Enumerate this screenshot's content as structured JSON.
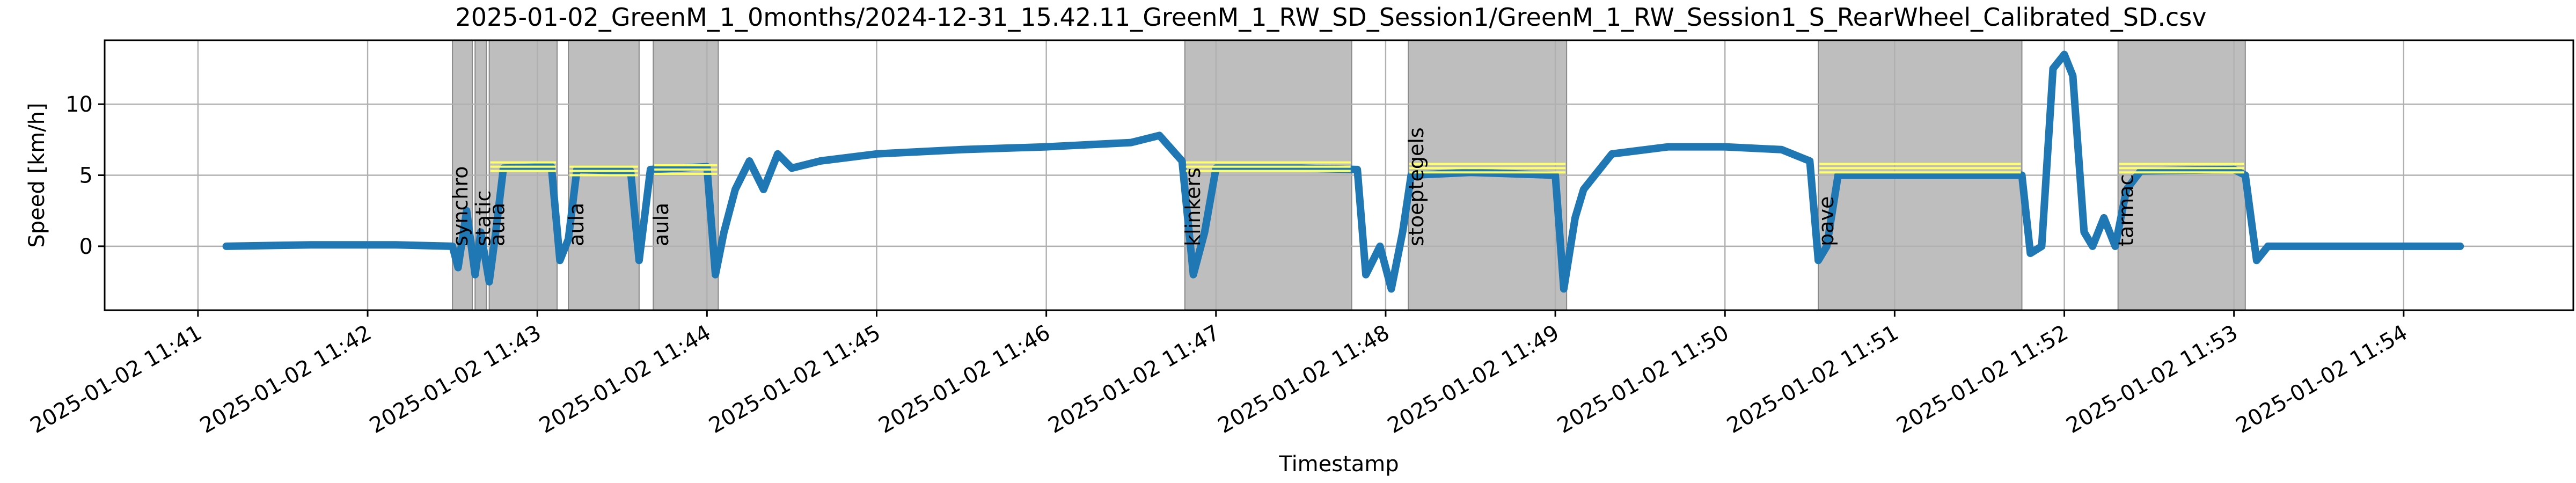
{
  "chart_data": {
    "type": "line",
    "title": "2025-01-02_GreenM_1_0months/2024-12-31_15.42.11_GreenM_1_RW_SD_Session1/GreenM_1_RW_Session1_S_RearWheel_Calibrated_SD.csv",
    "xlabel": "Timestamp",
    "ylabel": "Speed [km/h]",
    "grid": true,
    "x_range": [
      "2025-01-02 11:40:27",
      "2025-01-02 11:55:00"
    ],
    "ylim": [
      -4.5,
      14.5
    ],
    "x_ticks": [
      "2025-01-02 11:41",
      "2025-01-02 11:42",
      "2025-01-02 11:43",
      "2025-01-02 11:44",
      "2025-01-02 11:45",
      "2025-01-02 11:46",
      "2025-01-02 11:47",
      "2025-01-02 11:48",
      "2025-01-02 11:49",
      "2025-01-02 11:50",
      "2025-01-02 11:51",
      "2025-01-02 11:52",
      "2025-01-02 11:53",
      "2025-01-02 11:54"
    ],
    "y_ticks": [
      0,
      5,
      10
    ],
    "colors": {
      "series": "#1f77b4",
      "band": "#bebebe",
      "band_edge": "#8a8a8a",
      "target": "#ffff66"
    },
    "series": [
      {
        "points": [
          [
            "11:41:10",
            0
          ],
          [
            "11:41:40",
            0.1
          ],
          [
            "11:42:10",
            0.1
          ],
          [
            "11:42:30",
            0
          ],
          [
            "11:42:32",
            -1.5
          ],
          [
            "11:42:35",
            2.5
          ],
          [
            "11:42:38",
            -2
          ],
          [
            "11:42:40",
            1
          ],
          [
            "11:42:43",
            -2.5
          ],
          [
            "11:42:45",
            0.5
          ],
          [
            "11:42:48",
            5.5
          ],
          [
            "11:43:05",
            5.6
          ],
          [
            "11:43:08",
            -1
          ],
          [
            "11:43:11",
            0.5
          ],
          [
            "11:43:14",
            5.4
          ],
          [
            "11:43:33",
            5.3
          ],
          [
            "11:43:36",
            -1
          ],
          [
            "11:43:40",
            5.4
          ],
          [
            "11:44:00",
            5.6
          ],
          [
            "11:44:03",
            -2
          ],
          [
            "11:44:06",
            1
          ],
          [
            "11:44:10",
            4
          ],
          [
            "11:44:15",
            6
          ],
          [
            "11:44:20",
            4
          ],
          [
            "11:44:25",
            6.5
          ],
          [
            "11:44:30",
            5.5
          ],
          [
            "11:44:40",
            6
          ],
          [
            "11:45:00",
            6.5
          ],
          [
            "11:45:30",
            6.8
          ],
          [
            "11:46:00",
            7
          ],
          [
            "11:46:30",
            7.3
          ],
          [
            "11:46:40",
            7.8
          ],
          [
            "11:46:48",
            6
          ],
          [
            "11:46:52",
            -2
          ],
          [
            "11:46:56",
            1
          ],
          [
            "11:47:00",
            5.5
          ],
          [
            "11:47:30",
            5.5
          ],
          [
            "11:47:50",
            5.4
          ],
          [
            "11:47:53",
            -2
          ],
          [
            "11:47:58",
            0
          ],
          [
            "11:48:02",
            -3
          ],
          [
            "11:48:06",
            1
          ],
          [
            "11:48:09",
            5
          ],
          [
            "11:48:30",
            5.2
          ],
          [
            "11:49:00",
            5
          ],
          [
            "11:49:03",
            -3
          ],
          [
            "11:49:07",
            2
          ],
          [
            "11:49:10",
            4
          ],
          [
            "11:49:20",
            6.5
          ],
          [
            "11:49:40",
            7
          ],
          [
            "11:50:00",
            7
          ],
          [
            "11:50:20",
            6.8
          ],
          [
            "11:50:30",
            6
          ],
          [
            "11:50:33",
            -1
          ],
          [
            "11:50:36",
            0
          ],
          [
            "11:50:40",
            5
          ],
          [
            "11:51:00",
            5
          ],
          [
            "11:51:30",
            5
          ],
          [
            "11:51:45",
            5
          ],
          [
            "11:51:48",
            -0.5
          ],
          [
            "11:51:52",
            0
          ],
          [
            "11:51:56",
            12.5
          ],
          [
            "11:52:00",
            13.5
          ],
          [
            "11:52:03",
            12
          ],
          [
            "11:52:07",
            1
          ],
          [
            "11:52:10",
            0
          ],
          [
            "11:52:14",
            2
          ],
          [
            "11:52:18",
            0
          ],
          [
            "11:52:22",
            4
          ],
          [
            "11:52:27",
            5.3
          ],
          [
            "11:53:00",
            5.4
          ],
          [
            "11:53:04",
            5
          ],
          [
            "11:53:08",
            -1
          ],
          [
            "11:53:12",
            0
          ],
          [
            "11:53:30",
            0
          ],
          [
            "11:54:00",
            0
          ],
          [
            "11:54:20",
            0
          ]
        ]
      }
    ],
    "shaded_intervals": [
      {
        "start": "11:42:30",
        "end": "11:42:37",
        "label": "synchro",
        "target": null
      },
      {
        "start": "11:42:38",
        "end": "11:42:42",
        "label": "static",
        "target": null
      },
      {
        "start": "11:42:43",
        "end": "11:43:07",
        "label": "aula",
        "target": 5.6
      },
      {
        "start": "11:43:11",
        "end": "11:43:36",
        "label": "aula",
        "target": 5.3
      },
      {
        "start": "11:43:41",
        "end": "11:44:04",
        "label": "aula",
        "target": 5.4
      },
      {
        "start": "11:46:49",
        "end": "11:47:48",
        "label": "klinkers",
        "target": 5.6
      },
      {
        "start": "11:48:08",
        "end": "11:49:04",
        "label": "stoeptegels",
        "target": 5.5
      },
      {
        "start": "11:50:33",
        "end": "11:51:45",
        "label": "pave",
        "target": 5.5
      },
      {
        "start": "11:52:19",
        "end": "11:53:04",
        "label": "tarmac",
        "target": 5.5
      }
    ]
  }
}
